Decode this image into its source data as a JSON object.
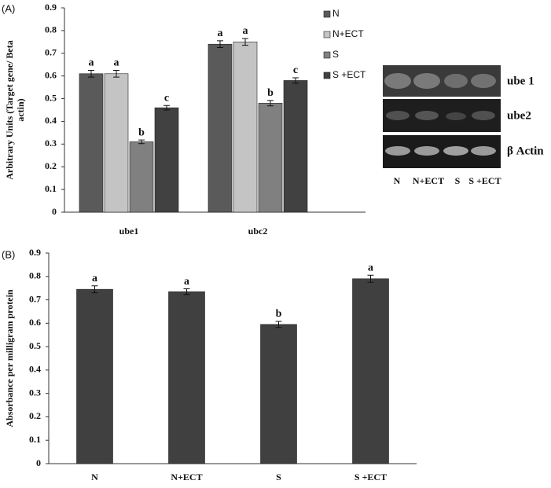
{
  "panels": [
    "(A)",
    "(B)"
  ],
  "chart_data": [
    {
      "type": "bar",
      "ylabel": [
        "Arbitrary Units (Target gene/ Beta",
        "actin)"
      ],
      "categories": [
        "ube1",
        "ubc2"
      ],
      "series": [
        {
          "name": "N",
          "color": "#5a5a5a",
          "values": [
            0.61,
            0.74
          ],
          "errors": [
            0.015,
            0.015
          ],
          "significance": [
            "a",
            "a"
          ]
        },
        {
          "name": "N+ECT",
          "color": "#c4c4c4",
          "values": [
            0.61,
            0.75
          ],
          "errors": [
            0.015,
            0.015
          ],
          "significance": [
            "a",
            "a"
          ]
        },
        {
          "name": "S",
          "color": "#808080",
          "values": [
            0.31,
            0.48
          ],
          "errors": [
            0.008,
            0.012
          ],
          "significance": [
            "b",
            "b"
          ]
        },
        {
          "name": "S +ECT",
          "color": "#414141",
          "values": [
            0.46,
            0.58
          ],
          "errors": [
            0.01,
            0.012
          ],
          "significance": [
            "c",
            "c"
          ]
        }
      ],
      "ylim": [
        0,
        0.9
      ],
      "yticks": [
        0,
        0.1,
        0.2,
        0.3,
        0.4,
        0.5,
        0.6,
        0.7,
        0.8,
        0.9
      ]
    },
    {
      "type": "bar",
      "ylabel": [
        "Absorbance per milligram protein"
      ],
      "categories": [
        "N",
        "N+ECT",
        "S",
        "S +ECT"
      ],
      "values": [
        0.745,
        0.735,
        0.595,
        0.79
      ],
      "errors": [
        0.015,
        0.012,
        0.013,
        0.015
      ],
      "significance": [
        "a",
        "a",
        "b",
        "a"
      ],
      "color": "#404040",
      "ylim": [
        0,
        0.9
      ],
      "yticks": [
        0,
        0.1,
        0.2,
        0.3,
        0.4,
        0.5,
        0.6,
        0.7,
        0.8,
        0.9
      ]
    }
  ],
  "gel": {
    "rows": [
      "ube 1",
      "ube2",
      "β Actin"
    ],
    "lanes": [
      "N",
      "N+ECT",
      "S",
      "S +ECT"
    ]
  }
}
